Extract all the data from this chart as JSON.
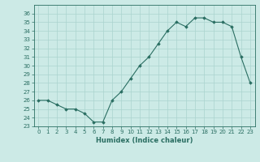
{
  "x": [
    0,
    1,
    2,
    3,
    4,
    5,
    6,
    7,
    8,
    9,
    10,
    11,
    12,
    13,
    14,
    15,
    16,
    17,
    18,
    19,
    20,
    21,
    22,
    23
  ],
  "y": [
    26,
    26,
    25.5,
    25,
    25,
    24.5,
    23.5,
    23.5,
    26,
    27,
    28.5,
    30,
    31,
    32.5,
    34,
    35,
    34.5,
    35.5,
    35.5,
    35,
    35,
    34.5,
    31,
    28
  ],
  "line_color": "#2a6e62",
  "marker": "D",
  "marker_size": 1.8,
  "xlabel": "Humidex (Indice chaleur)",
  "xlim": [
    -0.5,
    23.5
  ],
  "ylim": [
    23,
    37
  ],
  "yticks": [
    23,
    24,
    25,
    26,
    27,
    28,
    29,
    30,
    31,
    32,
    33,
    34,
    35,
    36
  ],
  "xticks": [
    0,
    1,
    2,
    3,
    4,
    5,
    6,
    7,
    8,
    9,
    10,
    11,
    12,
    13,
    14,
    15,
    16,
    17,
    18,
    19,
    20,
    21,
    22,
    23
  ],
  "bg_color": "#cceae6",
  "grid_color": "#aad4ce",
  "tick_fontsize": 5.0,
  "xlabel_fontsize": 6.0
}
